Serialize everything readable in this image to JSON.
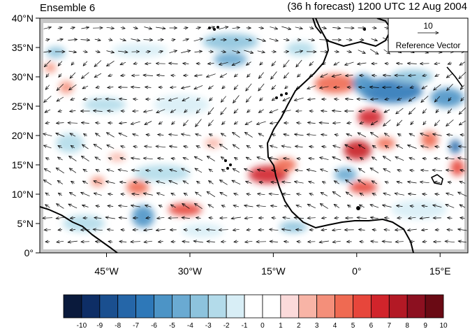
{
  "header": {
    "left_title": "Ensemble 6",
    "right_title": "(36 h forecast) 1200 UTC 12 Aug 2004"
  },
  "map": {
    "lat_labels": [
      "40°N",
      "35°N",
      "30°N",
      "25°N",
      "20°N",
      "15°N",
      "10°N",
      "5°N",
      "0°"
    ],
    "lat_values": [
      40,
      35,
      30,
      25,
      20,
      15,
      10,
      5,
      0
    ],
    "lon_labels": [
      "45°W",
      "30°W",
      "15°W",
      "0°",
      "15°E"
    ],
    "lon_values": [
      -45,
      -30,
      -15,
      0,
      15
    ],
    "lon_range": [
      -57,
      20
    ],
    "lat_range": [
      0,
      40
    ],
    "land_mask_color": "#c8c8c8"
  },
  "reference_vector": {
    "magnitude": "10",
    "label": "Reference Vector"
  },
  "colorbar": {
    "tick_labels": [
      "-10",
      "-9",
      "-8",
      "-7",
      "-6",
      "-5",
      "-4",
      "-3",
      "-2",
      "-1",
      "0",
      "1",
      "2",
      "3",
      "4",
      "5",
      "6",
      "7",
      "8",
      "9",
      "10"
    ],
    "colors": [
      "#0a1a3c",
      "#0e2e66",
      "#1a4f8f",
      "#2566a8",
      "#2e78b8",
      "#4c94c6",
      "#6aaad2",
      "#8dc3dd",
      "#b3dbea",
      "#d8eef6",
      "#ffffff",
      "#ffffff",
      "#fbdada",
      "#f8b4a6",
      "#f48f7a",
      "#ef6a52",
      "#e7463b",
      "#d1242b",
      "#b31925",
      "#8c1020",
      "#6a0a14"
    ]
  }
}
